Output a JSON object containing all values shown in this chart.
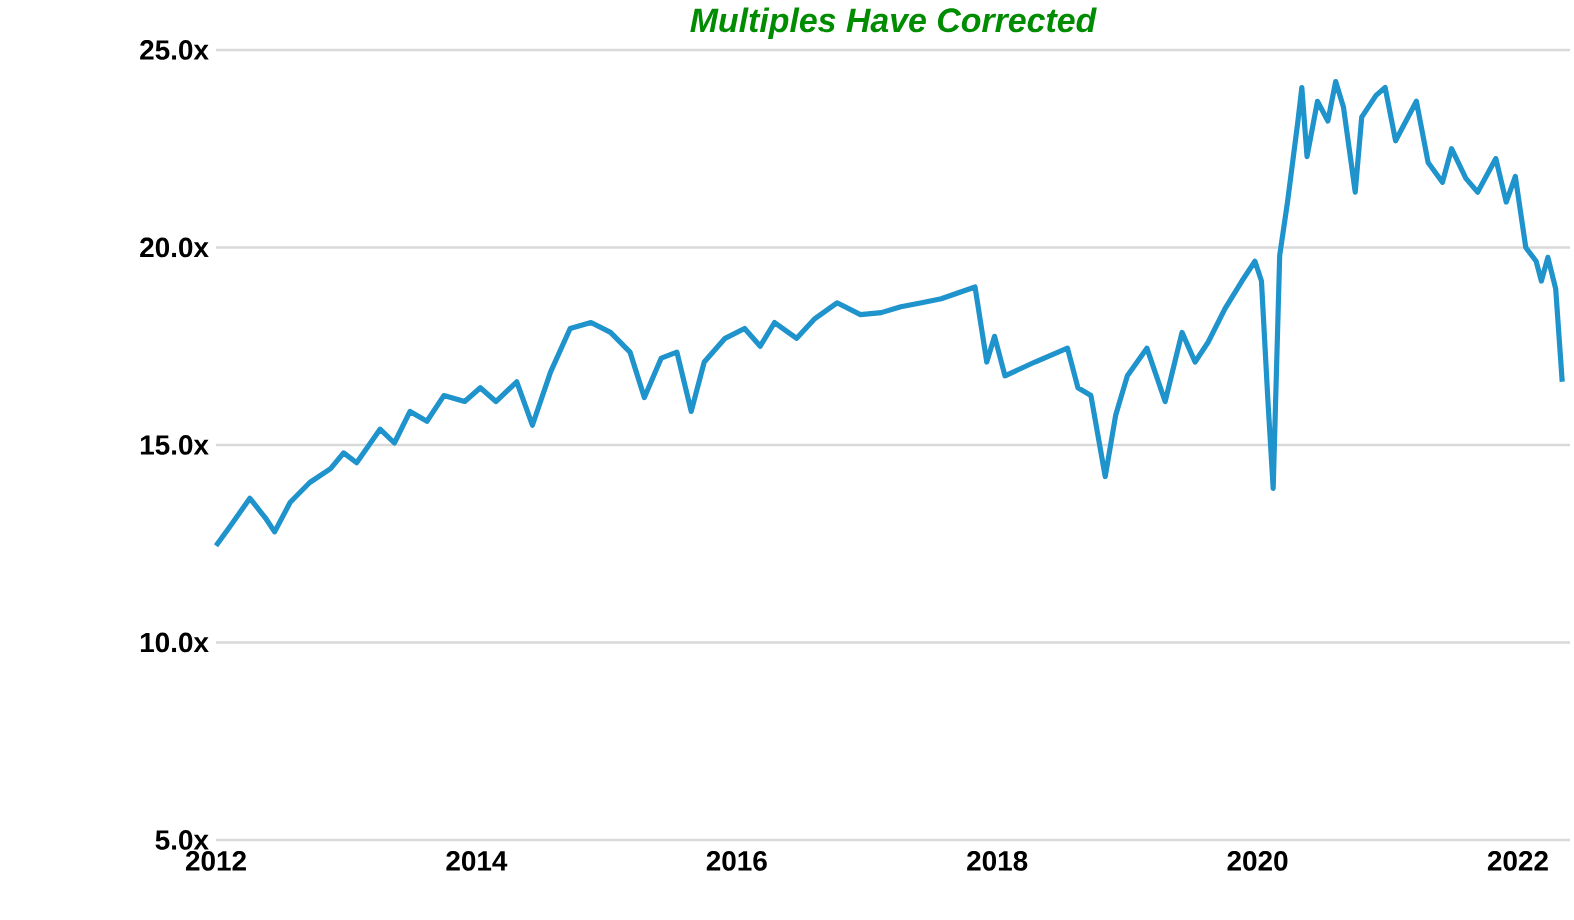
{
  "chart_data": {
    "type": "line",
    "title": "Multiples Have Corrected",
    "x": [
      2012.0,
      2012.11,
      2012.26,
      2012.38,
      2012.45,
      2012.57,
      2012.72,
      2012.88,
      2012.98,
      2013.08,
      2013.26,
      2013.37,
      2013.49,
      2013.62,
      2013.75,
      2013.91,
      2014.03,
      2014.15,
      2014.31,
      2014.43,
      2014.57,
      2014.72,
      2014.88,
      2015.03,
      2015.18,
      2015.29,
      2015.42,
      2015.54,
      2015.65,
      2015.75,
      2015.91,
      2016.06,
      2016.18,
      2016.29,
      2016.46,
      2016.6,
      2016.77,
      2016.95,
      2017.11,
      2017.26,
      2017.42,
      2017.57,
      2017.83,
      2017.92,
      2017.98,
      2018.06,
      2018.29,
      2018.54,
      2018.62,
      2018.72,
      2018.83,
      2018.91,
      2019.0,
      2019.15,
      2019.29,
      2019.42,
      2019.52,
      2019.62,
      2019.75,
      2019.88,
      2019.98,
      2020.03,
      2020.08,
      2020.12,
      2020.17,
      2020.23,
      2020.31,
      2020.34,
      2020.38,
      2020.46,
      2020.54,
      2020.6,
      2020.66,
      2020.75,
      2020.8,
      2020.91,
      2020.98,
      2021.06,
      2021.14,
      2021.22,
      2021.31,
      2021.42,
      2021.49,
      2021.6,
      2021.69,
      2021.83,
      2021.91,
      2021.98,
      2022.06,
      2022.14,
      2022.18,
      2022.23,
      2022.29,
      2022.34
    ],
    "series": [
      {
        "color": "#1f93cc",
        "values": [
          12.45,
          12.95,
          13.65,
          13.15,
          12.8,
          13.55,
          14.05,
          14.4,
          14.8,
          14.55,
          15.4,
          15.05,
          15.85,
          15.6,
          16.25,
          16.1,
          16.45,
          16.1,
          16.6,
          15.5,
          16.85,
          17.95,
          18.1,
          17.85,
          17.35,
          16.2,
          17.2,
          17.35,
          15.85,
          17.1,
          17.7,
          17.95,
          17.5,
          18.1,
          17.7,
          18.2,
          18.6,
          18.3,
          18.35,
          18.5,
          18.6,
          18.7,
          19.0,
          17.1,
          17.75,
          16.75,
          17.1,
          17.45,
          16.45,
          16.25,
          14.2,
          15.75,
          16.75,
          17.45,
          16.1,
          17.85,
          17.1,
          17.6,
          18.45,
          19.15,
          19.65,
          19.15,
          16.1,
          13.9,
          19.8,
          21.15,
          23.2,
          24.05,
          22.3,
          23.7,
          23.2,
          24.2,
          23.55,
          21.4,
          23.3,
          23.85,
          24.05,
          22.7,
          23.2,
          23.7,
          22.15,
          21.65,
          22.5,
          21.75,
          21.4,
          22.25,
          21.15,
          21.8,
          20.0,
          19.65,
          19.15,
          19.75,
          18.95,
          16.6
        ]
      }
    ],
    "xlim": [
      2012,
      2022.4
    ],
    "ylim": [
      5,
      25
    ],
    "xticks": [
      2012,
      2014,
      2016,
      2018,
      2020,
      2022
    ],
    "yticks": [
      {
        "value": 5,
        "label": "5.0x"
      },
      {
        "value": 10,
        "label": "10.0x"
      },
      {
        "value": 15,
        "label": "15.0x"
      },
      {
        "value": 20,
        "label": "20.0x"
      },
      {
        "value": 25,
        "label": "25.0x"
      }
    ],
    "grid": "y",
    "marker": "none",
    "line_style": "solid"
  }
}
